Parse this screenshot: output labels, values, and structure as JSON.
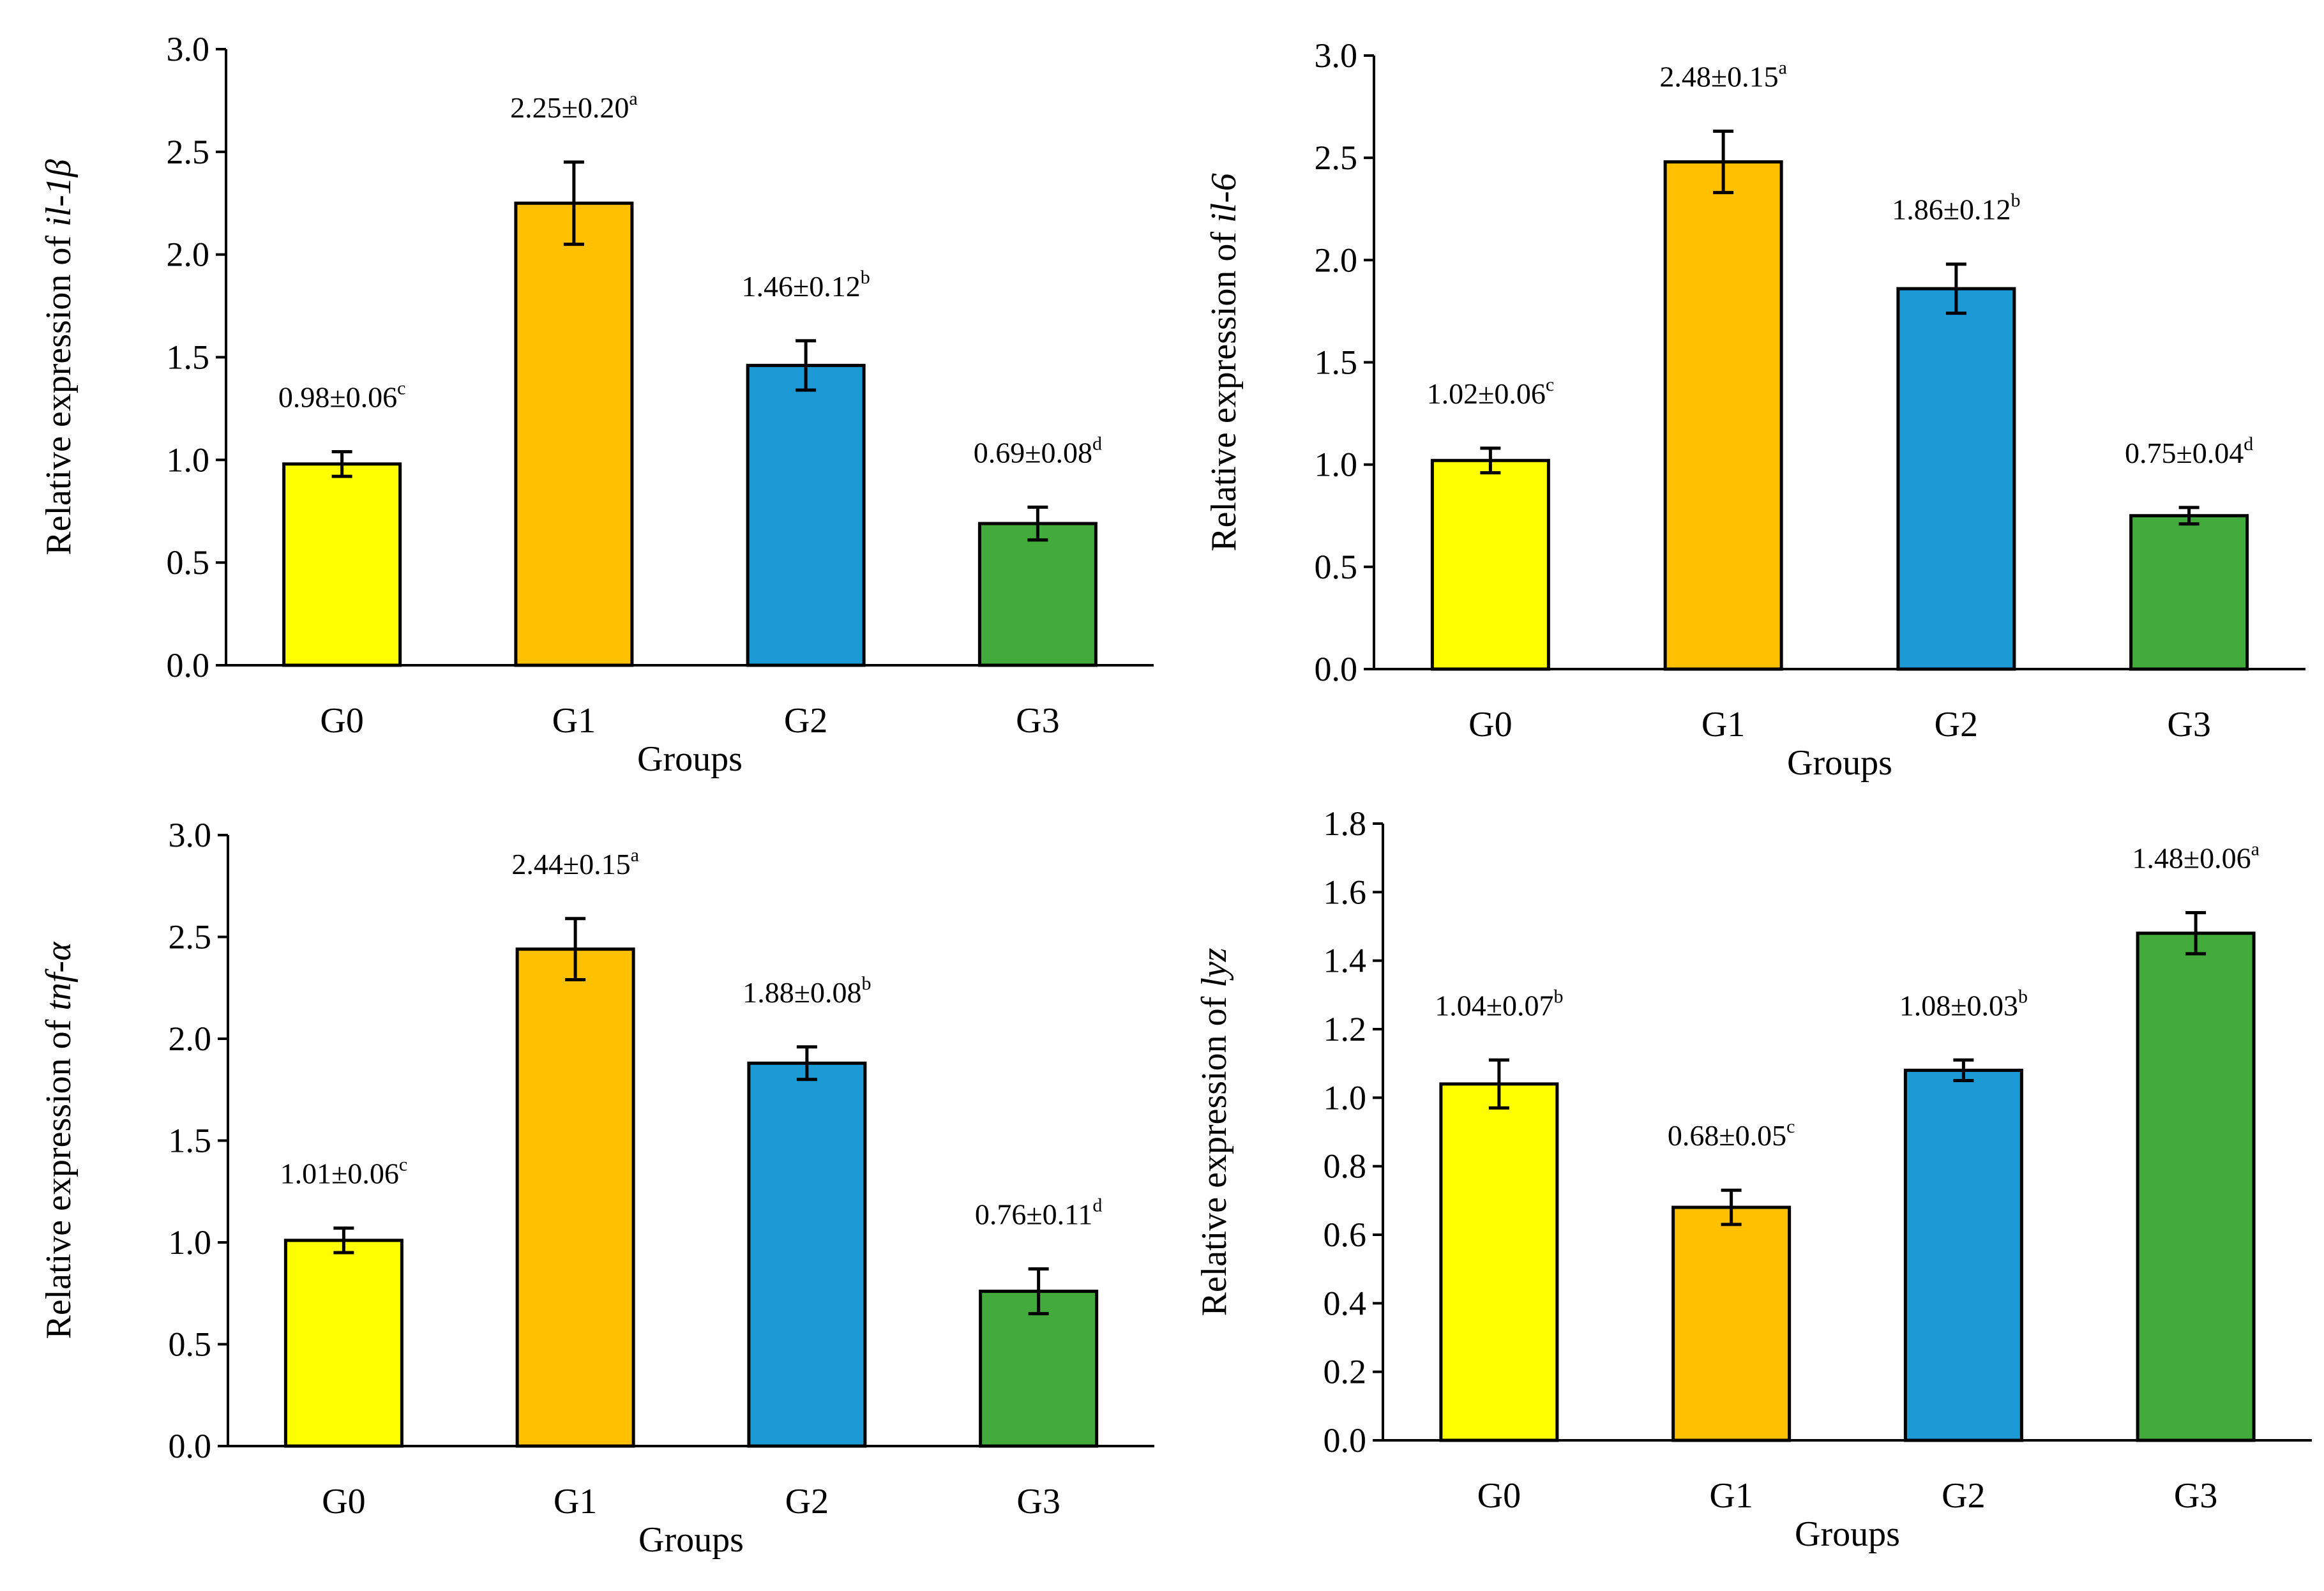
{
  "colors": [
    "#FFFF00",
    "#FFC000",
    "#1B9AD6",
    "#43AA3C"
  ],
  "chart_data": [
    {
      "type": "bar",
      "title": "",
      "categories": [
        "G0",
        "G1",
        "G2",
        "G3"
      ],
      "values": [
        0.98,
        2.25,
        1.46,
        0.69
      ],
      "errors": [
        0.06,
        0.2,
        0.12,
        0.08
      ],
      "data_labels": [
        {
          "text": "0.98±0.06",
          "sup": "c"
        },
        {
          "text": "2.25±0.20",
          "sup": "a"
        },
        {
          "text": "1.46±0.12",
          "sup": "b"
        },
        {
          "text": "0.69±0.08",
          "sup": "d"
        }
      ],
      "xlabel": "Groups",
      "ylabel_prefix": "Relative expression of ",
      "ylabel_gene": "il-1β",
      "ylim": [
        0,
        3.0
      ],
      "yticks": [
        "0.0",
        "0.5",
        "1.0",
        "1.5",
        "2.0",
        "2.5",
        "3.0"
      ]
    },
    {
      "type": "bar",
      "title": "",
      "categories": [
        "G0",
        "G1",
        "G2",
        "G3"
      ],
      "values": [
        1.02,
        2.48,
        1.86,
        0.75
      ],
      "errors": [
        0.06,
        0.15,
        0.12,
        0.04
      ],
      "data_labels": [
        {
          "text": "1.02±0.06",
          "sup": "c"
        },
        {
          "text": "2.48±0.15",
          "sup": "a"
        },
        {
          "text": "1.86±0.12",
          "sup": "b"
        },
        {
          "text": "0.75±0.04",
          "sup": "d"
        }
      ],
      "xlabel": "Groups",
      "ylabel_prefix": "Relative expression of ",
      "ylabel_gene": "il-6",
      "ylim": [
        0,
        3.0
      ],
      "yticks": [
        "0.0",
        "0.5",
        "1.0",
        "1.5",
        "2.0",
        "2.5",
        "3.0"
      ]
    },
    {
      "type": "bar",
      "title": "",
      "categories": [
        "G0",
        "G1",
        "G2",
        "G3"
      ],
      "values": [
        1.01,
        2.44,
        1.88,
        0.76
      ],
      "errors": [
        0.06,
        0.15,
        0.08,
        0.11
      ],
      "data_labels": [
        {
          "text": "1.01±0.06",
          "sup": "c"
        },
        {
          "text": "2.44±0.15",
          "sup": "a"
        },
        {
          "text": "1.88±0.08",
          "sup": "b"
        },
        {
          "text": "0.76±0.11",
          "sup": "d"
        }
      ],
      "xlabel": "Groups",
      "ylabel_prefix": "Relative expression of ",
      "ylabel_gene": "tnf-α",
      "ylim": [
        0,
        3.0
      ],
      "yticks": [
        "0.0",
        "0.5",
        "1.0",
        "1.5",
        "2.0",
        "2.5",
        "3.0"
      ]
    },
    {
      "type": "bar",
      "title": "",
      "categories": [
        "G0",
        "G1",
        "G2",
        "G3"
      ],
      "values": [
        1.04,
        0.68,
        1.08,
        1.48
      ],
      "errors": [
        0.07,
        0.05,
        0.03,
        0.06
      ],
      "data_labels": [
        {
          "text": "1.04±0.07",
          "sup": "b"
        },
        {
          "text": "0.68±0.05",
          "sup": "c"
        },
        {
          "text": "1.08±0.03",
          "sup": "b"
        },
        {
          "text": "1.48±0.06",
          "sup": "a"
        }
      ],
      "xlabel": "Groups",
      "ylabel_prefix": "Relative expression of ",
      "ylabel_gene": "lyz",
      "ylim": [
        0,
        1.8
      ],
      "yticks": [
        "0.0",
        "0.2",
        "0.4",
        "0.6",
        "0.8",
        "1.0",
        "1.2",
        "1.4",
        "1.6",
        "1.8"
      ]
    }
  ]
}
